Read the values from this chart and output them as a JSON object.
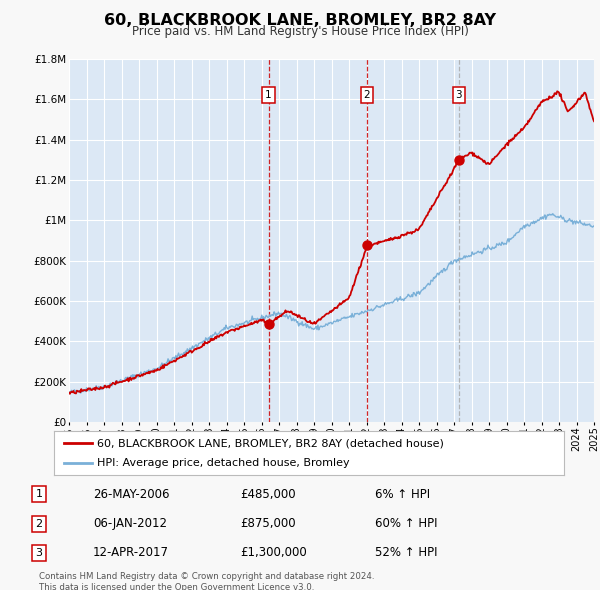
{
  "title": "60, BLACKBROOK LANE, BROMLEY, BR2 8AY",
  "subtitle": "Price paid vs. HM Land Registry's House Price Index (HPI)",
  "background_color": "#f8f8f8",
  "plot_bg_color": "#dce8f5",
  "grid_color": "#ffffff",
  "ylim": [
    0,
    1800000
  ],
  "yticks": [
    0,
    200000,
    400000,
    600000,
    800000,
    1000000,
    1200000,
    1400000,
    1600000,
    1800000
  ],
  "ytick_labels": [
    "£0",
    "£200K",
    "£400K",
    "£600K",
    "£800K",
    "£1M",
    "£1.2M",
    "£1.4M",
    "£1.6M",
    "£1.8M"
  ],
  "sale_dates": [
    2006.4,
    2012.03,
    2017.28
  ],
  "sale_prices": [
    485000,
    875000,
    1300000
  ],
  "sale_labels": [
    "1",
    "2",
    "3"
  ],
  "vline_colors": [
    "#cc0000",
    "#cc0000",
    "#aaaaaa"
  ],
  "vline_styles": [
    "--",
    "--",
    "--"
  ],
  "hpi_color": "#7ab0d8",
  "price_color": "#cc0000",
  "legend_label_price": "60, BLACKBROOK LANE, BROMLEY, BR2 8AY (detached house)",
  "legend_label_hpi": "HPI: Average price, detached house, Bromley",
  "table_data": [
    [
      "1",
      "26-MAY-2006",
      "£485,000",
      "6% ↑ HPI"
    ],
    [
      "2",
      "06-JAN-2012",
      "£875,000",
      "60% ↑ HPI"
    ],
    [
      "3",
      "12-APR-2017",
      "£1,300,000",
      "52% ↑ HPI"
    ]
  ],
  "footnote": "Contains HM Land Registry data © Crown copyright and database right 2024.\nThis data is licensed under the Open Government Licence v3.0.",
  "xmin": 1995,
  "xmax": 2025
}
